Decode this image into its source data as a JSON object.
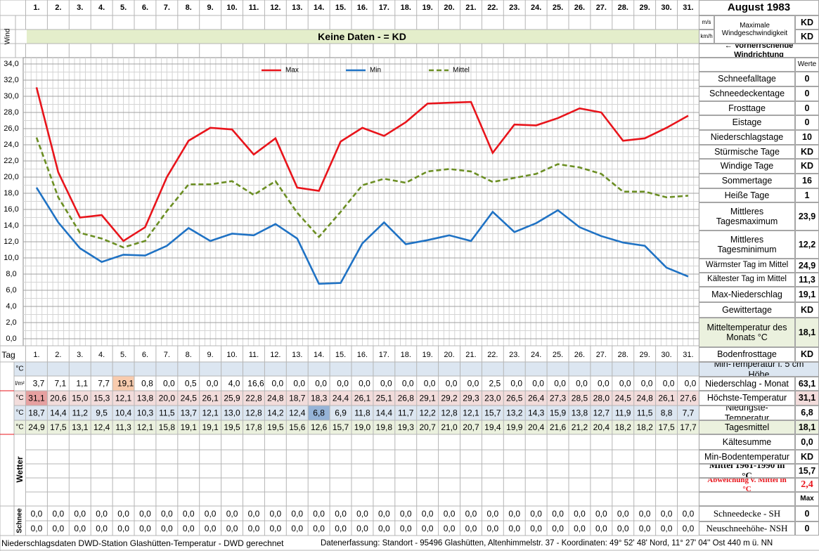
{
  "header": {
    "title": "August 1983",
    "wind_label": "Wind",
    "unit_ms": "m/s",
    "unit_kmh": "km/h",
    "max_wind_label": "Maximale Windgeschwindigkeit",
    "max_wind_ms": "KD",
    "max_wind_kmh": "KD",
    "no_data": "Keine Daten -  = KD",
    "wind_direction": "← Vorherrschende Windrichtung"
  },
  "chart_data": {
    "type": "line",
    "categories": [
      "1.",
      "2.",
      "3.",
      "4.",
      "5.",
      "6.",
      "7.",
      "8.",
      "9.",
      "10.",
      "11.",
      "12.",
      "13.",
      "14.",
      "15.",
      "16.",
      "17.",
      "18.",
      "19.",
      "20.",
      "21.",
      "22.",
      "23.",
      "24.",
      "25.",
      "26.",
      "27.",
      "28.",
      "29.",
      "30.",
      "31."
    ],
    "series": [
      {
        "name": "Max",
        "color": "#e8141b",
        "line_style": "solid",
        "values": [
          31.1,
          20.6,
          15.0,
          15.3,
          12.1,
          13.8,
          20.0,
          24.5,
          26.1,
          25.9,
          22.8,
          24.8,
          18.7,
          18.3,
          24.4,
          26.1,
          25.1,
          26.8,
          29.1,
          29.2,
          29.3,
          23.0,
          26.5,
          26.4,
          27.3,
          28.5,
          28.0,
          24.5,
          24.8,
          26.1,
          27.6
        ],
        "value_labels": [
          "31,1",
          "20,6",
          "15,0",
          "15,3",
          "12,1",
          "13,8",
          "20,0",
          "24,5",
          "26,1",
          "25,9",
          "22,8",
          "24,8",
          "18,7",
          "18,3",
          "24,4",
          "26,1",
          "25,1",
          "26,8",
          "29,1",
          "29,2",
          "29,3",
          "23,0",
          "26,5",
          "26,4",
          "27,3",
          "28,5",
          "28,0",
          "24,5",
          "24,8",
          "26,1",
          "27,6"
        ]
      },
      {
        "name": "Min",
        "color": "#1f72c4",
        "line_style": "solid",
        "values": [
          18.7,
          14.4,
          11.2,
          9.5,
          10.4,
          10.3,
          11.5,
          13.7,
          12.1,
          13.0,
          12.8,
          14.2,
          12.4,
          6.8,
          6.9,
          11.8,
          14.4,
          11.7,
          12.2,
          12.8,
          12.1,
          15.7,
          13.2,
          14.3,
          15.9,
          13.8,
          12.7,
          11.9,
          11.5,
          8.8,
          7.7
        ],
        "value_labels": [
          "18,7",
          "14,4",
          "11,2",
          "9,5",
          "10,4",
          "10,3",
          "11,5",
          "13,7",
          "12,1",
          "13,0",
          "12,8",
          "14,2",
          "12,4",
          "6,8",
          "6,9",
          "11,8",
          "14,4",
          "11,7",
          "12,2",
          "12,8",
          "12,1",
          "15,7",
          "13,2",
          "14,3",
          "15,9",
          "13,8",
          "12,7",
          "11,9",
          "11,5",
          "8,8",
          "7,7"
        ]
      },
      {
        "name": "Mittel",
        "color": "#6b8e23",
        "line_style": "dashed",
        "values": [
          24.9,
          17.5,
          13.1,
          12.4,
          11.3,
          12.1,
          15.8,
          19.1,
          19.1,
          19.5,
          17.8,
          19.5,
          15.6,
          12.6,
          15.7,
          19.0,
          19.8,
          19.3,
          20.7,
          21.0,
          20.7,
          19.4,
          19.9,
          20.4,
          21.6,
          21.2,
          20.4,
          18.2,
          18.2,
          17.5,
          17.7
        ],
        "value_labels": [
          "24,9",
          "17,5",
          "13,1",
          "12,4",
          "11,3",
          "12,1",
          "15,8",
          "19,1",
          "19,1",
          "19,5",
          "17,8",
          "19,5",
          "15,6",
          "12,6",
          "15,7",
          "19,0",
          "19,8",
          "19,3",
          "20,7",
          "21,0",
          "20,7",
          "19,4",
          "19,9",
          "20,4",
          "21,6",
          "21,2",
          "20,4",
          "18,2",
          "18,2",
          "17,5",
          "17,7"
        ]
      }
    ],
    "ylim": [
      0,
      34
    ],
    "yticks": [
      {
        "value": 0,
        "label": "0,0"
      },
      {
        "value": 2,
        "label": "2,0"
      },
      {
        "value": 4,
        "label": "4,0"
      },
      {
        "value": 6,
        "label": "6,0"
      },
      {
        "value": 8,
        "label": "8,0"
      },
      {
        "value": 10,
        "label": "10,0"
      },
      {
        "value": 12,
        "label": "12,0"
      },
      {
        "value": 14,
        "label": "14,0"
      },
      {
        "value": 16,
        "label": "16,0"
      },
      {
        "value": 18,
        "label": "18,0"
      },
      {
        "value": 20,
        "label": "20,0"
      },
      {
        "value": 22,
        "label": "22,0"
      },
      {
        "value": 24,
        "label": "24,0"
      },
      {
        "value": 26,
        "label": "26,0"
      },
      {
        "value": 28,
        "label": "28,0"
      },
      {
        "value": 30,
        "label": "30,0"
      },
      {
        "value": 32,
        "label": "32,0"
      },
      {
        "value": 34,
        "label": "34,0"
      }
    ],
    "grid": true,
    "legend": "top"
  },
  "table": {
    "day_label": "Tag",
    "units": [
      "°C",
      "l/m²",
      "°C",
      "°C",
      "°C"
    ],
    "precipitation": [
      "3,7",
      "7,1",
      "1,1",
      "7,7",
      "19,1",
      "0,8",
      "0,0",
      "0,5",
      "0,0",
      "4,0",
      "16,6",
      "0,0",
      "0,0",
      "0,0",
      "0,0",
      "0,0",
      "0,0",
      "0,0",
      "0,0",
      "0,0",
      "0,0",
      "2,5",
      "0,0",
      "0,0",
      "0,0",
      "0,0",
      "0,0",
      "0,0",
      "0,0",
      "0,0",
      "0,0"
    ],
    "weather_label": "Wetter",
    "snow_label": "Schnee",
    "snow_rows": [
      [
        "0,0",
        "0,0",
        "0,0",
        "0,0",
        "0,0",
        "0,0",
        "0,0",
        "0,0",
        "0,0",
        "0,0",
        "0,0",
        "0,0",
        "0,0",
        "0,0",
        "0,0",
        "0,0",
        "0,0",
        "0,0",
        "0,0",
        "0,0",
        "0,0",
        "0,0",
        "0,0",
        "0,0",
        "0,0",
        "0,0",
        "0,0",
        "0,0",
        "0,0",
        "0,0",
        "0,0"
      ],
      [
        "0,0",
        "0,0",
        "0,0",
        "0,0",
        "0,0",
        "0,0",
        "0,0",
        "0,0",
        "0,0",
        "0,0",
        "0,0",
        "0,0",
        "0,0",
        "0,0",
        "0,0",
        "0,0",
        "0,0",
        "0,0",
        "0,0",
        "0,0",
        "0,0",
        "0,0",
        "0,0",
        "0,0",
        "0,0",
        "0,0",
        "0,0",
        "0,0",
        "0,0",
        "0,0",
        "0,0"
      ]
    ]
  },
  "stats": {
    "header": "Werte",
    "items": [
      {
        "label": "Schneefalltage",
        "value": "0"
      },
      {
        "label": "Schneedeckentage",
        "value": "0"
      },
      {
        "label": "Frosttage",
        "value": "0"
      },
      {
        "label": "Eistage",
        "value": "0"
      },
      {
        "label": "Niederschlagstage",
        "value": "10"
      },
      {
        "label": "Stürmische Tage",
        "value": "KD"
      },
      {
        "label": "Windige Tage",
        "value": "KD"
      },
      {
        "label": "Sommertage",
        "value": "16"
      },
      {
        "label": "Heiße Tage",
        "value": "1"
      },
      {
        "label": "Mittleres Tagesmaximum",
        "value": "23,9"
      },
      {
        "label": "Mittleres Tagesminimum",
        "value": "12,2"
      },
      {
        "label": "Wärmster Tag im Mittel",
        "value": "24,9"
      },
      {
        "label": "Kältester Tag im Mittel",
        "value": "11,3"
      },
      {
        "label": "Max-Niederschlag",
        "value": "19,1"
      },
      {
        "label": "Gewittertage",
        "value": "KD"
      },
      {
        "label": "Mitteltemperatur des Monats °C",
        "value": "18,1"
      },
      {
        "label": "Bodenfrosttage",
        "value": "KD"
      },
      {
        "label": "Min-Temperatur i. 5 cm Höhe"
      },
      {
        "label": "Niederschlag - Monat",
        "value": "63,1"
      },
      {
        "label": "Höchste-Temperatur",
        "value": "31,1"
      },
      {
        "label": "Niedrigste-Temperatur",
        "value": "6,8"
      },
      {
        "label": "Tagesmittel",
        "value": "18,1"
      },
      {
        "label": "Kältesumme",
        "value": "0,0"
      },
      {
        "label": "Min-Bodentemperatur",
        "value": "KD"
      },
      {
        "label": "Mittel 1961-1990 in °C",
        "value": "15,7"
      },
      {
        "label": "Abweichung v. Mittel in °C",
        "value": "2,4"
      },
      {
        "value": "Max"
      },
      {
        "label": "Schneedecke -   SH",
        "value": "0"
      },
      {
        "label": "Neuschneehöhe- NSH",
        "value": "0"
      }
    ]
  },
  "footer": {
    "left": "Niederschlagsdaten DWD-Station Glashütten-Temperatur -  DWD gerechnet",
    "right": "Datenerfassung:  Standort -  95496  Glashütten, Altenhimmelstr. 37 - Koordinaten:  49° 52' 48' Nord,   11° 27' 04'' Ost   440 m ü. NN"
  }
}
